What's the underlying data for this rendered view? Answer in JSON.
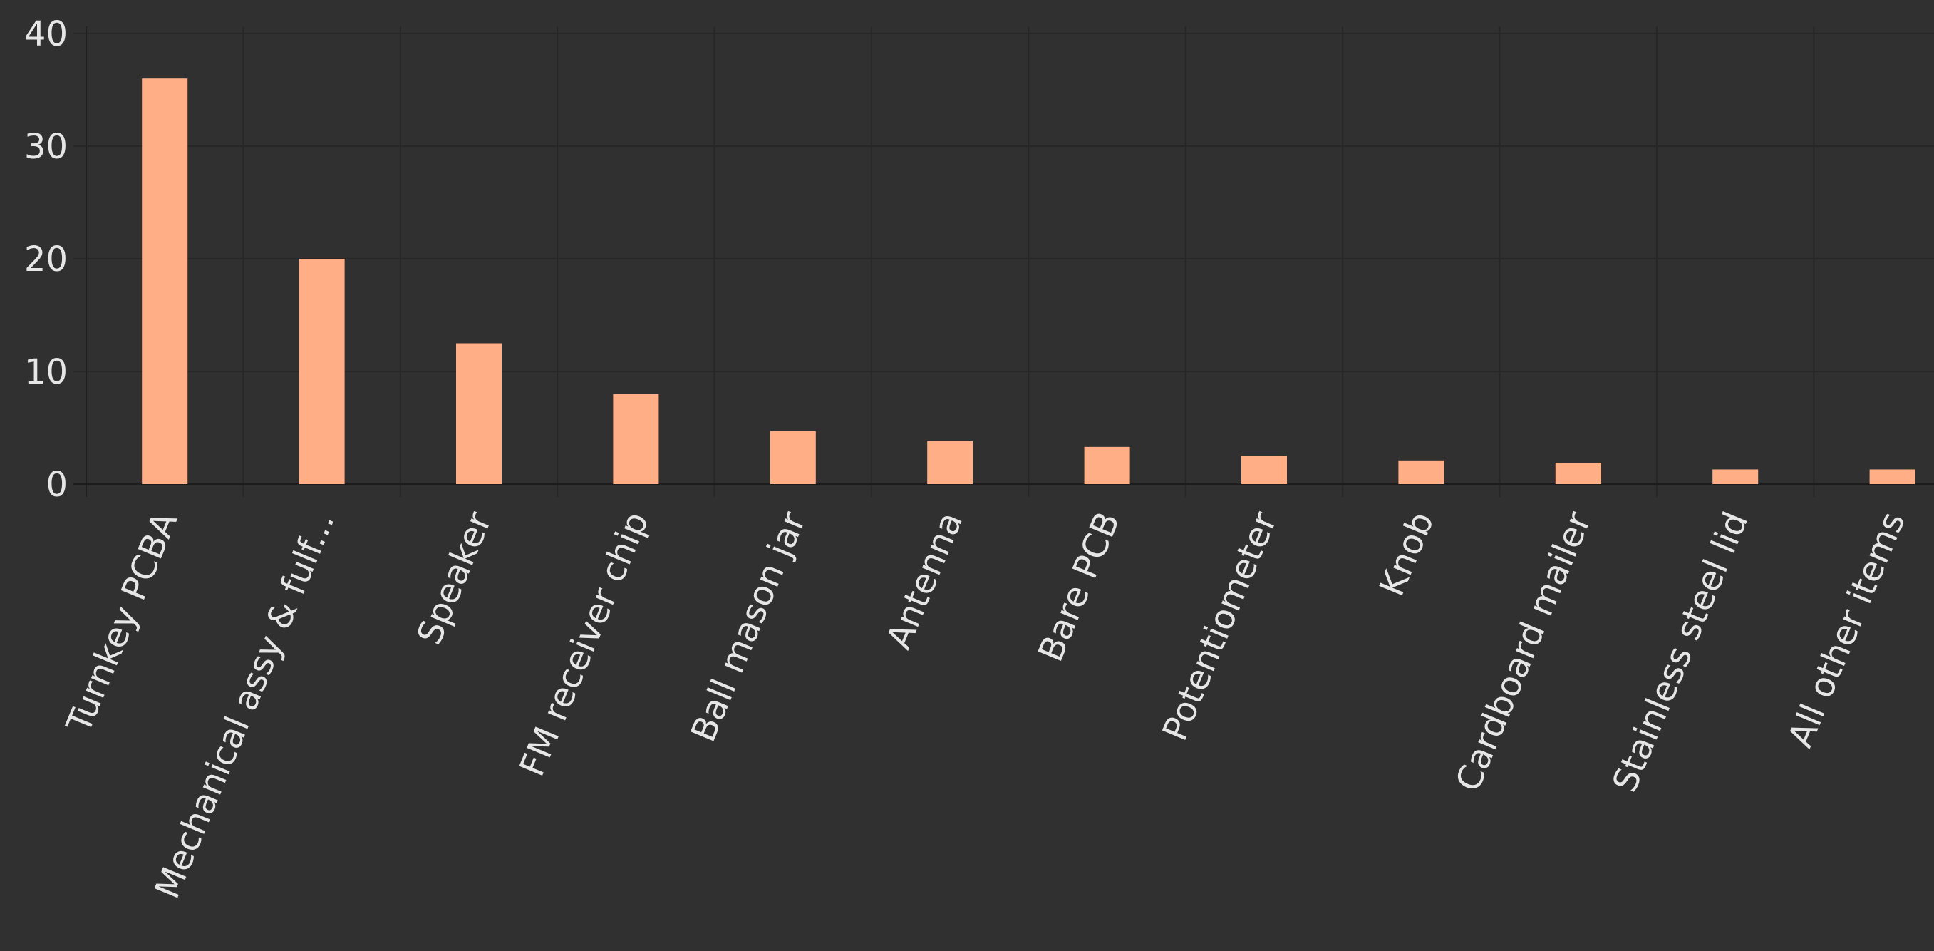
{
  "chart_data": {
    "type": "bar",
    "categories": [
      "Turnkey PCBA",
      "Mechanical assy & fulf...",
      "Speaker",
      "FM receiver chip",
      "Ball mason jar",
      "Antenna",
      "Bare PCB",
      "Potentiometer",
      "Knob",
      "Cardboard mailer",
      "Stainless steel lid",
      "All other items"
    ],
    "values": [
      36,
      20,
      12.5,
      8,
      4.7,
      3.8,
      3.3,
      2.5,
      2.1,
      1.9,
      1.3,
      1.3
    ],
    "color": "#ffae85",
    "ylim": [
      0,
      40
    ],
    "yticks": [
      0,
      10,
      20,
      30,
      40
    ],
    "grid": true
  }
}
